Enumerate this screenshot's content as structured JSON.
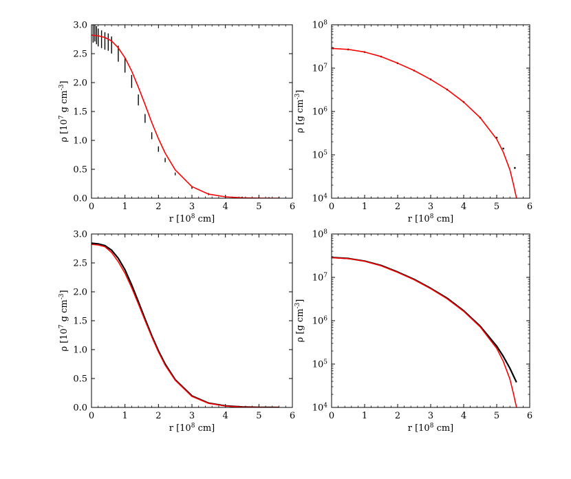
{
  "chart_data": [
    {
      "type": "scatter",
      "scale": "linear",
      "xlabel": "r [10^8 cm]",
      "ylabel": "ρ [10^7 g cm^-3]",
      "xlim": [
        0,
        6
      ],
      "ylim": [
        0,
        3.0
      ],
      "xticks": [
        "0",
        "1",
        "2",
        "3",
        "4",
        "5",
        "6"
      ],
      "yticks": [
        "0.0",
        "0.5",
        "1.0",
        "1.5",
        "2.0",
        "2.5",
        "3.0"
      ],
      "series": [
        {
          "color": "#000000",
          "style": "points-scattered",
          "x": [
            0.05,
            0.1,
            0.15,
            0.2,
            0.3,
            0.4,
            0.5,
            0.6,
            0.8,
            1.0,
            1.2,
            1.4,
            1.6,
            1.8,
            2.0,
            2.2,
            2.5,
            3.0,
            3.5,
            4.0,
            4.5,
            5.0,
            5.3,
            5.6
          ],
          "y": [
            2.85,
            2.87,
            2.82,
            2.78,
            2.75,
            2.72,
            2.7,
            2.65,
            2.5,
            2.3,
            2.02,
            1.7,
            1.38,
            1.08,
            0.85,
            0.66,
            0.42,
            0.18,
            0.07,
            0.025,
            0.008,
            0.002,
            0.0008,
            0.0002
          ]
        },
        {
          "color": "#ff0000",
          "style": "line",
          "x": [
            0,
            0.2,
            0.4,
            0.6,
            0.8,
            1.0,
            1.2,
            1.4,
            1.6,
            1.8,
            2.0,
            2.2,
            2.5,
            3.0,
            3.5,
            4.0,
            4.5,
            5.0,
            5.3,
            5.6
          ],
          "y": [
            2.82,
            2.81,
            2.78,
            2.72,
            2.6,
            2.43,
            2.2,
            1.92,
            1.62,
            1.31,
            1.03,
            0.78,
            0.49,
            0.2,
            0.07,
            0.024,
            0.007,
            0.0015,
            0.0005,
            0.0
          ]
        }
      ]
    },
    {
      "type": "scatter",
      "scale": "log",
      "xlabel": "r [10^8 cm]",
      "ylabel": "ρ [g cm^-3]",
      "xlim": [
        0,
        6
      ],
      "ylim": [
        10000,
        100000000
      ],
      "xticks": [
        "0",
        "1",
        "2",
        "3",
        "4",
        "5",
        "6"
      ],
      "yticks": [
        "10^4",
        "10^5",
        "10^6",
        "10^7",
        "10^8"
      ],
      "series": [
        {
          "color": "#000000",
          "style": "points",
          "x": [
            0.05,
            0.5,
            1.0,
            1.5,
            2.0,
            2.5,
            3.0,
            3.5,
            4.0,
            4.5,
            5.0,
            5.2,
            5.55
          ],
          "y": [
            28500000,
            27000000,
            23500000,
            18500000,
            13000000,
            8800000,
            5500000,
            3200000,
            1650000,
            720000,
            250000,
            140000,
            50000
          ]
        },
        {
          "color": "#ff0000",
          "style": "line",
          "x": [
            0,
            0.5,
            1.0,
            1.5,
            2.0,
            2.5,
            3.0,
            3.5,
            4.0,
            4.5,
            5.0,
            5.2,
            5.4,
            5.5,
            5.6
          ],
          "y": [
            28500000,
            27000000,
            23500000,
            18500000,
            13000000,
            8800000,
            5500000,
            3200000,
            1650000,
            720000,
            230000,
            115000,
            45000,
            22000,
            10000
          ]
        }
      ]
    },
    {
      "type": "line",
      "scale": "linear",
      "xlabel": "r [10^8 cm]",
      "ylabel": "ρ [10^7 g cm^-3]",
      "xlim": [
        0,
        6
      ],
      "ylim": [
        0,
        3.0
      ],
      "xticks": [
        "0",
        "1",
        "2",
        "3",
        "4",
        "5",
        "6"
      ],
      "yticks": [
        "0.0",
        "0.5",
        "1.0",
        "1.5",
        "2.0",
        "2.5",
        "3.0"
      ],
      "series": [
        {
          "color": "#000000",
          "style": "line",
          "x": [
            0,
            0.2,
            0.4,
            0.6,
            0.8,
            1.0,
            1.2,
            1.4,
            1.6,
            1.8,
            2.0,
            2.2,
            2.5,
            3.0,
            3.5,
            4.0,
            4.5,
            5.0,
            5.3,
            5.6
          ],
          "y": [
            2.84,
            2.83,
            2.8,
            2.72,
            2.58,
            2.38,
            2.12,
            1.83,
            1.53,
            1.24,
            0.98,
            0.75,
            0.48,
            0.2,
            0.075,
            0.027,
            0.009,
            0.002,
            0.0008,
            0.0004
          ]
        },
        {
          "color": "#ff0000",
          "style": "line",
          "x": [
            0,
            0.2,
            0.4,
            0.6,
            0.8,
            1.0,
            1.2,
            1.4,
            1.6,
            1.8,
            2.0,
            2.2,
            2.5,
            3.0,
            3.5,
            4.0,
            4.5,
            5.0,
            5.3,
            5.6
          ],
          "y": [
            2.82,
            2.81,
            2.78,
            2.68,
            2.52,
            2.32,
            2.07,
            1.79,
            1.5,
            1.22,
            0.96,
            0.73,
            0.47,
            0.19,
            0.07,
            0.024,
            0.007,
            0.0015,
            0.0005,
            0.0
          ]
        }
      ]
    },
    {
      "type": "line",
      "scale": "log",
      "xlabel": "r [10^8 cm]",
      "ylabel": "ρ [g cm^-3]",
      "xlim": [
        0,
        6
      ],
      "ylim": [
        10000,
        100000000
      ],
      "xticks": [
        "0",
        "1",
        "2",
        "3",
        "4",
        "5",
        "6"
      ],
      "yticks": [
        "10^4",
        "10^5",
        "10^6",
        "10^7",
        "10^8"
      ],
      "series": [
        {
          "color": "#000000",
          "style": "line",
          "x": [
            0,
            0.5,
            1.0,
            1.5,
            2.0,
            2.5,
            3.0,
            3.5,
            4.0,
            4.5,
            5.0,
            5.2,
            5.4,
            5.6
          ],
          "y": [
            28800000,
            27300000,
            23800000,
            18800000,
            13300000,
            9000000,
            5600000,
            3300000,
            1700000,
            750000,
            260000,
            150000,
            80000,
            38000
          ]
        },
        {
          "color": "#ff0000",
          "style": "line",
          "x": [
            0,
            0.5,
            1.0,
            1.5,
            2.0,
            2.5,
            3.0,
            3.5,
            4.0,
            4.5,
            5.0,
            5.2,
            5.4,
            5.5,
            5.6
          ],
          "y": [
            28500000,
            27000000,
            23500000,
            18500000,
            13000000,
            8800000,
            5500000,
            3200000,
            1650000,
            720000,
            230000,
            115000,
            45000,
            22000,
            10000
          ]
        }
      ]
    }
  ]
}
